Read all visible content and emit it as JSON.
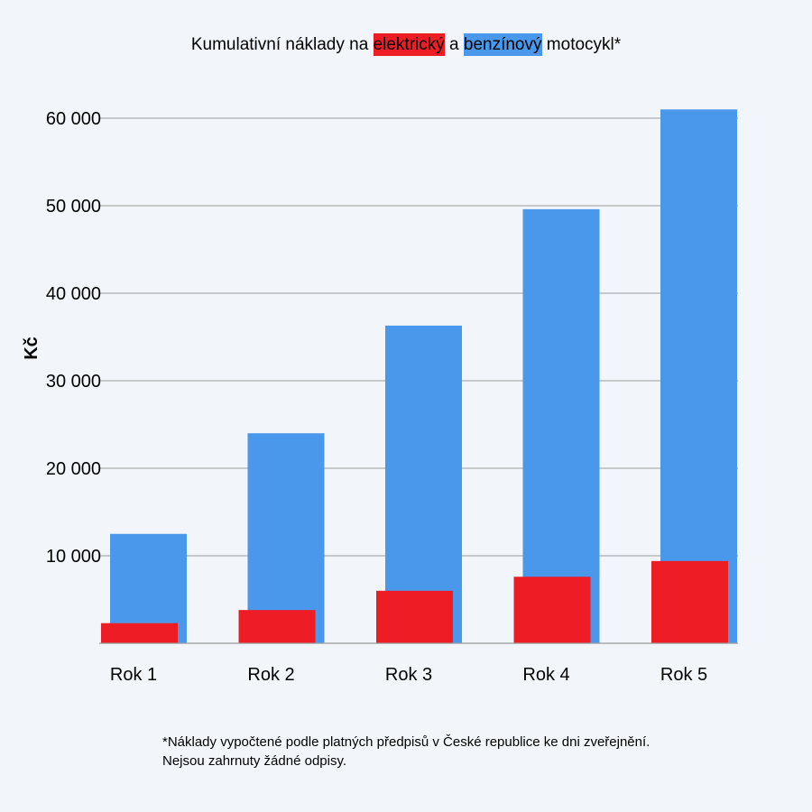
{
  "colors": {
    "background": "#f2f6fa",
    "electric": "#ee1c25",
    "petrol": "#4a98ec",
    "grid": "#9a9a9a"
  },
  "title": {
    "part1": "Kumulativní náklady na ",
    "electric_label": "elektrický",
    "part2": " a ",
    "petrol_label": "benzínový",
    "part3": " motocykl*"
  },
  "footnote": {
    "line1": "*Náklady vypočtené podle platných předpisů v České republice ke dni zveřejnění.",
    "line2": "Nejsou zahrnuty žádné odpisy."
  },
  "chart_data": {
    "type": "bar",
    "title": "Kumulativní náklady na elektrický a benzínový motocykl*",
    "xlabel": "",
    "ylabel": "Kč",
    "categories": [
      "Rok 1",
      "Rok 2",
      "Rok 3",
      "Rok 4",
      "Rok 5"
    ],
    "y_ticks": [
      10000,
      20000,
      30000,
      40000,
      50000,
      60000
    ],
    "y_tick_labels": [
      "10 000",
      "20 000",
      "30 000",
      "40 000",
      "50 000",
      "60 000"
    ],
    "ylim": [
      0,
      62000
    ],
    "grid": true,
    "series": [
      {
        "name": "benzínový",
        "color": "#4a98ec",
        "values": [
          12500,
          24000,
          36300,
          49600,
          61000
        ]
      },
      {
        "name": "elektrický",
        "color": "#ee1c25",
        "values": [
          2300,
          3800,
          6000,
          7600,
          9400
        ]
      }
    ]
  }
}
